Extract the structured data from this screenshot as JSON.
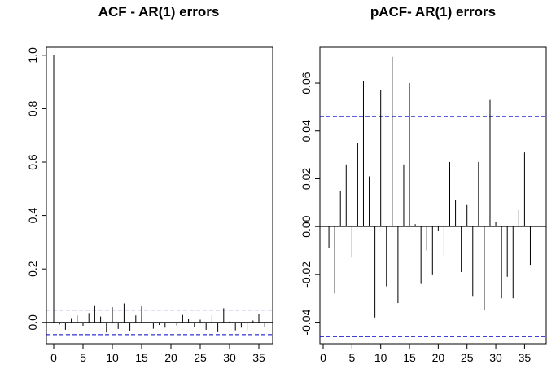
{
  "chart_data": [
    {
      "type": "bar",
      "title": "ACF - AR(1) errors",
      "xlabel": "",
      "ylabel": "",
      "xlim": [
        -1,
        37
      ],
      "ylim": [
        -0.08,
        1.03
      ],
      "xticks": [
        0,
        5,
        10,
        15,
        20,
        25,
        30,
        35
      ],
      "yticks": [
        0.0,
        0.2,
        0.4,
        0.6,
        0.8,
        1.0
      ],
      "ytick_labels": [
        "0.0",
        "0.2",
        "0.4",
        "0.6",
        "0.8",
        "1.0"
      ],
      "lags": [
        0,
        1,
        2,
        3,
        4,
        5,
        6,
        7,
        8,
        9,
        10,
        11,
        12,
        13,
        14,
        15,
        16,
        17,
        18,
        19,
        20,
        21,
        22,
        23,
        24,
        25,
        26,
        27,
        28,
        29,
        30,
        31,
        32,
        33,
        34,
        35,
        36
      ],
      "values": [
        1.0,
        -0.008,
        -0.028,
        0.016,
        0.026,
        -0.013,
        0.035,
        0.061,
        0.022,
        -0.038,
        0.057,
        -0.025,
        0.071,
        -0.031,
        0.026,
        0.06,
        0.001,
        -0.024,
        -0.01,
        -0.02,
        -0.002,
        -0.012,
        0.028,
        0.012,
        -0.019,
        0.01,
        -0.028,
        0.027,
        -0.034,
        0.053,
        0.003,
        -0.03,
        -0.02,
        -0.03,
        0.007,
        0.031,
        -0.016
      ],
      "conf_bound": 0.046,
      "grid": false,
      "colors": {
        "bars": "#000000",
        "zero_line": "#000000",
        "conf_lines": "#0000cc"
      }
    },
    {
      "type": "bar",
      "title": "pACF- AR(1) errors",
      "xlabel": "",
      "ylabel": "",
      "xlim": [
        0,
        37
      ],
      "ylim": [
        -0.049,
        0.075
      ],
      "xticks": [
        0,
        5,
        10,
        15,
        20,
        25,
        30,
        35
      ],
      "yticks": [
        -0.04,
        -0.02,
        0.0,
        0.02,
        0.04,
        0.06
      ],
      "ytick_labels": [
        "-0.04",
        "-0.02",
        "0.00",
        "0.02",
        "0.04",
        "0.06"
      ],
      "lags": [
        1,
        2,
        3,
        4,
        5,
        6,
        7,
        8,
        9,
        10,
        11,
        12,
        13,
        14,
        15,
        16,
        17,
        18,
        19,
        20,
        21,
        22,
        23,
        24,
        25,
        26,
        27,
        28,
        29,
        30,
        31,
        32,
        33,
        34,
        35,
        36
      ],
      "values": [
        -0.009,
        -0.028,
        0.015,
        0.026,
        -0.013,
        0.035,
        0.061,
        0.021,
        -0.038,
        0.057,
        -0.025,
        0.071,
        -0.032,
        0.026,
        0.06,
        0.001,
        -0.024,
        -0.01,
        -0.02,
        -0.002,
        -0.012,
        0.027,
        0.011,
        -0.019,
        0.009,
        -0.029,
        0.027,
        -0.035,
        0.053,
        0.002,
        -0.03,
        -0.021,
        -0.03,
        0.007,
        0.031,
        -0.016
      ],
      "conf_bound": 0.046,
      "grid": false,
      "colors": {
        "bars": "#000000",
        "zero_line": "#000000",
        "conf_lines": "#0000cc"
      }
    }
  ]
}
